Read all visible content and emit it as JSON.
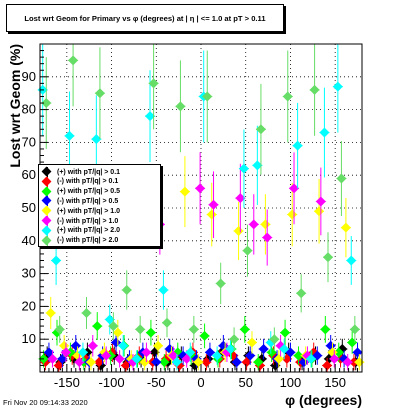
{
  "chart_data": {
    "type": "scatter",
    "title": "Lost wrt Geom for Primary vs φ (degrees) at | η | <= 1.0 at pT > 0.11",
    "xlabel": "φ (degrees)",
    "ylabel": "Lost wrt Geom (%)",
    "xlim": [
      -180,
      180
    ],
    "ylim": [
      0,
      100
    ],
    "x_ticks": [
      -150,
      -100,
      -50,
      0,
      50,
      100,
      150
    ],
    "y_ticks": [
      10,
      20,
      30,
      40,
      50,
      60,
      70,
      80,
      90
    ],
    "grid": "dotted",
    "legend_position": "left-middle",
    "series": [
      {
        "name": "(+) with pT/|q| > 0.1",
        "color": "#000000",
        "x": [
          -172,
          -157,
          -142,
          -127,
          -112,
          -97,
          -82,
          -67,
          -52,
          -37,
          -22,
          -7,
          8,
          23,
          38,
          53,
          68,
          83,
          98,
          113,
          128,
          143,
          158,
          173
        ],
        "y": [
          5,
          3,
          4,
          6,
          2,
          5,
          3,
          4,
          6,
          3,
          5,
          2,
          4,
          6,
          3,
          5,
          4,
          2,
          6,
          3,
          5,
          4,
          7,
          3
        ]
      },
      {
        "name": "(-) with pT/|q| > 0.1",
        "color": "#ff0000",
        "x": [
          -174,
          -159,
          -144,
          -129,
          -114,
          -99,
          -84,
          -69,
          -54,
          -39,
          -24,
          -9,
          6,
          21,
          36,
          51,
          66,
          81,
          96,
          111,
          126,
          141,
          156,
          171
        ],
        "y": [
          3,
          2,
          5,
          4,
          3,
          6,
          2,
          5,
          3,
          4,
          2,
          6,
          3,
          4,
          5,
          3,
          2,
          5,
          4,
          3,
          6,
          2,
          4,
          3
        ]
      },
      {
        "name": "(+) with pT/|q| > 0.5",
        "color": "#00ff00",
        "x": [
          -176,
          -161,
          -146,
          -131,
          -116,
          -101,
          -86,
          -71,
          -56,
          -41,
          -26,
          -11,
          4,
          19,
          34,
          49,
          64,
          79,
          94,
          109,
          124,
          139,
          154,
          169
        ],
        "y": [
          4,
          12,
          6,
          3,
          14,
          5,
          8,
          4,
          12,
          3,
          6,
          5,
          11,
          4,
          7,
          13,
          3,
          6,
          12,
          5,
          4,
          13,
          6,
          9
        ]
      },
      {
        "name": "(-) with pT/|q| > 0.5",
        "color": "#0000ff",
        "x": [
          -170,
          -155,
          -140,
          -125,
          -110,
          -95,
          -80,
          -65,
          -50,
          -35,
          -20,
          -5,
          10,
          25,
          40,
          55,
          70,
          85,
          100,
          115,
          130,
          145,
          160,
          175
        ],
        "y": [
          6,
          4,
          8,
          3,
          5,
          9,
          4,
          6,
          3,
          7,
          5,
          4,
          6,
          8,
          3,
          5,
          7,
          4,
          6,
          3,
          5,
          8,
          4,
          6
        ]
      },
      {
        "name": "(+) with pT/|q| > 1.0",
        "color": "#ffff00",
        "x": [
          -168,
          -153,
          -138,
          -123,
          -108,
          -93,
          -78,
          -63,
          -48,
          -33,
          -18,
          -3,
          12,
          27,
          42,
          57,
          72,
          87,
          102,
          117,
          132,
          147,
          162,
          177
        ],
        "y": [
          18,
          8,
          5,
          3,
          6,
          12,
          4,
          3,
          8,
          5,
          55,
          3,
          48,
          6,
          43,
          9,
          45,
          4,
          48,
          5,
          49,
          6,
          44,
          3
        ]
      },
      {
        "name": "(-) with pT/|q| > 1.0",
        "color": "#ff00ff",
        "x": [
          -166,
          -151,
          -136,
          -121,
          -106,
          -91,
          -76,
          -61,
          -46,
          -31,
          -16,
          -1,
          14,
          29,
          44,
          59,
          74,
          89,
          104,
          119,
          134,
          149,
          164
        ],
        "y": [
          4,
          6,
          3,
          8,
          5,
          4,
          3,
          6,
          45,
          5,
          4,
          56,
          51,
          6,
          53,
          45,
          41,
          8,
          56,
          5,
          52,
          4,
          3
        ]
      },
      {
        "name": "(+) with pT/|q| > 2.0",
        "color": "#00ffff",
        "x": [
          -177,
          -162,
          -147,
          -132,
          -117,
          -102,
          -87,
          -72,
          -57,
          -42,
          -27,
          -12,
          3,
          18,
          33,
          48,
          63,
          78,
          93,
          108,
          123,
          138,
          153,
          168
        ],
        "y": [
          86,
          34,
          72,
          6,
          71,
          16,
          8,
          4,
          78,
          25,
          3,
          6,
          84,
          5,
          7,
          62,
          63,
          9,
          7,
          69,
          4,
          73,
          87,
          34
        ]
      },
      {
        "name": "(-) with pT/|q| > 2.0",
        "color": "#66dd66",
        "x": [
          -173,
          -158,
          -143,
          -128,
          -113,
          -98,
          -83,
          -68,
          -53,
          -38,
          -23,
          -8,
          7,
          22,
          37,
          52,
          67,
          82,
          97,
          112,
          127,
          142,
          157,
          172
        ],
        "y": [
          82,
          13,
          95,
          18,
          85,
          14,
          25,
          13,
          88,
          15,
          81,
          13,
          84,
          27,
          10,
          37,
          74,
          10,
          84,
          24,
          86,
          35,
          59,
          13
        ]
      }
    ]
  },
  "footer": {
    "timestamp": "Fri Nov 20 09:14:33 2020"
  }
}
